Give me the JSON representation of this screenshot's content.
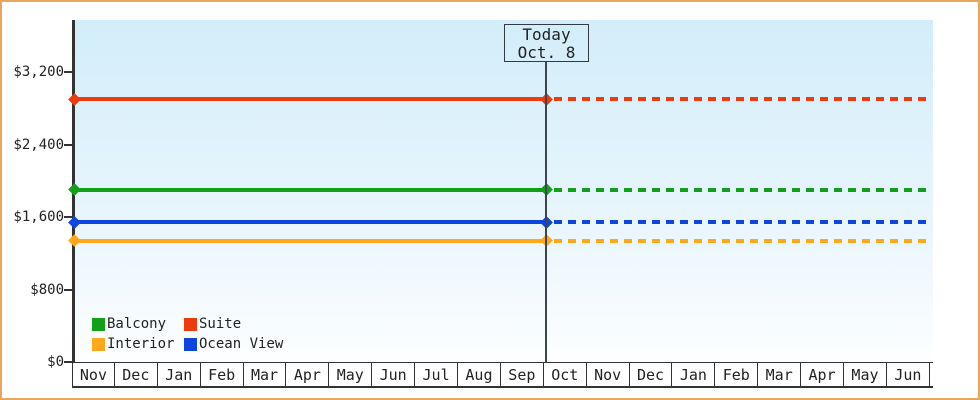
{
  "frame": {
    "border_color": "#e9a65c",
    "background_color": "#ffffff",
    "plot_background_top": "#d2edf9",
    "plot_background_bottom": "#fdfeff"
  },
  "chart_data": {
    "type": "line",
    "description": "Cruise cabin price history/projection chart; four flat price lines, solid up to today then dotted projection",
    "x_categories": [
      "Nov",
      "Dec",
      "Jan",
      "Feb",
      "Mar",
      "Apr",
      "May",
      "Jun",
      "Jul",
      "Aug",
      "Sep",
      "Oct",
      "Nov",
      "Dec",
      "Jan",
      "Feb",
      "Mar",
      "Apr",
      "May",
      "Jun"
    ],
    "today": {
      "line1": "Today",
      "line2": "Oct. 8",
      "x_category_index": 11
    },
    "y_ticks": [
      {
        "label": "$0",
        "value": 0
      },
      {
        "label": "$800",
        "value": 800
      },
      {
        "label": "$1,600",
        "value": 1600
      },
      {
        "label": "$2,400",
        "value": 2400
      },
      {
        "label": "$3,200",
        "value": 3200
      }
    ],
    "ylim": [
      0,
      3600
    ],
    "grid": false,
    "projection_after_today": "dotted",
    "series": [
      {
        "name": "Suite",
        "color": "#ee3b0e",
        "value": 2900
      },
      {
        "name": "Balcony",
        "color": "#12a019",
        "value": 1900
      },
      {
        "name": "Ocean View",
        "color": "#0d45dd",
        "value": 1540
      },
      {
        "name": "Interior",
        "color": "#ffa81c",
        "value": 1340
      }
    ],
    "legend": [
      {
        "label": "Balcony",
        "color": "#12a019"
      },
      {
        "label": "Suite",
        "color": "#ee3b0e"
      },
      {
        "label": "Interior",
        "color": "#ffa81c"
      },
      {
        "label": "Ocean View",
        "color": "#0d45dd"
      }
    ],
    "legend_position": "inside-bottom-left"
  }
}
